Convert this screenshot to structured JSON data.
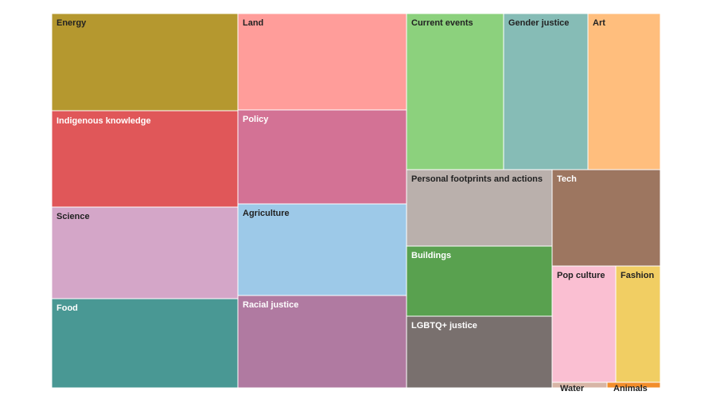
{
  "chart_data": {
    "type": "treemap",
    "title": "",
    "items": [
      {
        "label": "Energy",
        "color": "#b5982f",
        "text_color": "#222222"
      },
      {
        "label": "Indigenous knowledge",
        "color": "#e05759",
        "text_color": "#ffffff"
      },
      {
        "label": "Science",
        "color": "#d4a6c8",
        "text_color": "#222222"
      },
      {
        "label": "Food",
        "color": "#499894",
        "text_color": "#ffffff"
      },
      {
        "label": "Land",
        "color": "#ff9d9a",
        "text_color": "#222222"
      },
      {
        "label": "Policy",
        "color": "#d37295",
        "text_color": "#ffffff"
      },
      {
        "label": "Agriculture",
        "color": "#9dc9e8",
        "text_color": "#222222"
      },
      {
        "label": "Racial justice",
        "color": "#b07aa1",
        "text_color": "#ffffff"
      },
      {
        "label": "Current events",
        "color": "#8cd17d",
        "text_color": "#222222"
      },
      {
        "label": "Gender justice",
        "color": "#86bcb6",
        "text_color": "#222222"
      },
      {
        "label": "Art",
        "color": "#ffbe7d",
        "text_color": "#222222"
      },
      {
        "label": "Personal footprints and actions",
        "color": "#bab0ac",
        "text_color": "#222222"
      },
      {
        "label": "Tech",
        "color": "#9d7660",
        "text_color": "#ffffff"
      },
      {
        "label": "Buildings",
        "color": "#59a14f",
        "text_color": "#ffffff"
      },
      {
        "label": "LGBTQ+ justice",
        "color": "#79706e",
        "text_color": "#ffffff"
      },
      {
        "label": "Pop culture",
        "color": "#fabfd2",
        "text_color": "#222222"
      },
      {
        "label": "Fashion",
        "color": "#f1ce63",
        "text_color": "#222222"
      },
      {
        "label": "Water",
        "color": "#d7b5a6",
        "text_color": "#222222"
      },
      {
        "label": "Animals",
        "color": "#f28e2b",
        "text_color": "#222222"
      }
    ]
  }
}
